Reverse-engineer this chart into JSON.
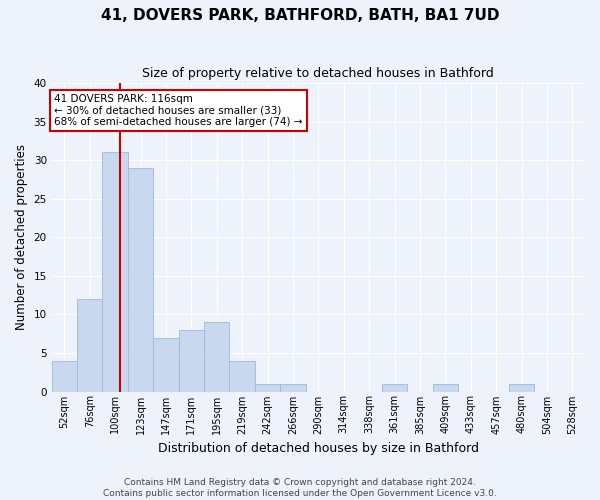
{
  "title": "41, DOVERS PARK, BATHFORD, BATH, BA1 7UD",
  "subtitle": "Size of property relative to detached houses in Bathford",
  "xlabel": "Distribution of detached houses by size in Bathford",
  "ylabel": "Number of detached properties",
  "bin_labels": [
    "52sqm",
    "76sqm",
    "100sqm",
    "123sqm",
    "147sqm",
    "171sqm",
    "195sqm",
    "219sqm",
    "242sqm",
    "266sqm",
    "290sqm",
    "314sqm",
    "338sqm",
    "361sqm",
    "385sqm",
    "409sqm",
    "433sqm",
    "457sqm",
    "480sqm",
    "504sqm",
    "528sqm"
  ],
  "bar_values": [
    4,
    12,
    31,
    29,
    7,
    8,
    9,
    4,
    1,
    1,
    0,
    0,
    0,
    1,
    0,
    1,
    0,
    0,
    1,
    0,
    0
  ],
  "bar_color": "#c8d8ee",
  "bar_edge_color": "#a0b8d8",
  "ylim": [
    0,
    40
  ],
  "yticks": [
    0,
    5,
    10,
    15,
    20,
    25,
    30,
    35,
    40
  ],
  "annotation_line1": "41 DOVERS PARK: 116sqm",
  "annotation_line2": "← 30% of detached houses are smaller (33)",
  "annotation_line3": "68% of semi-detached houses are larger (74) →",
  "annotation_box_color": "#ffffff",
  "annotation_box_edge_color": "#cc0000",
  "vline_color": "#cc0000",
  "vline_position": 2.69,
  "footnote_line1": "Contains HM Land Registry data © Crown copyright and database right 2024.",
  "footnote_line2": "Contains public sector information licensed under the Open Government Licence v3.0.",
  "background_color": "#eef2fb",
  "grid_color": "#ffffff",
  "title_fontsize": 11,
  "subtitle_fontsize": 9,
  "ylabel_fontsize": 8.5,
  "xlabel_fontsize": 9,
  "tick_fontsize": 7,
  "annotation_fontsize": 7.5,
  "footnote_fontsize": 6.5
}
